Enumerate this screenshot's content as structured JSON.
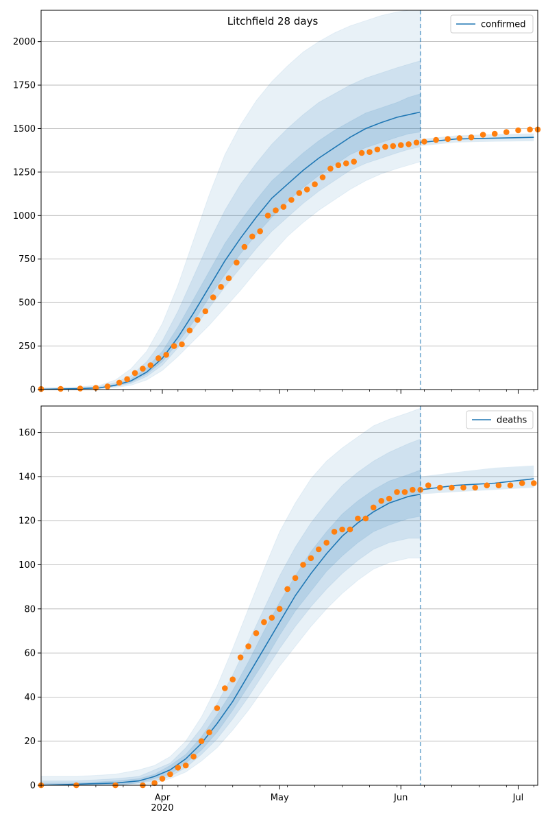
{
  "figure": {
    "title": "Litchfield 28 days"
  },
  "chart_data": [
    {
      "type": "line",
      "name": "confirmed",
      "ylim": [
        0,
        2180
      ],
      "y_ticks": [
        0,
        250,
        500,
        750,
        1000,
        1250,
        1500,
        1750,
        2000
      ],
      "y_tick_labels": [
        "0",
        "250",
        "500",
        "750",
        "1000",
        "1250",
        "1500",
        "1750",
        "2000"
      ],
      "legend": {
        "label": "confirmed",
        "placement": "top-right"
      },
      "grid_y": true,
      "fit_line": {
        "x": [
          "2020-03-01",
          "2020-03-10",
          "2020-03-16",
          "2020-03-20",
          "2020-03-24",
          "2020-03-28",
          "2020-04-01",
          "2020-04-05",
          "2020-04-09",
          "2020-04-13",
          "2020-04-17",
          "2020-04-21",
          "2020-04-25",
          "2020-04-29",
          "2020-05-03",
          "2020-05-07",
          "2020-05-11",
          "2020-05-15",
          "2020-05-19",
          "2020-05-23",
          "2020-05-27",
          "2020-05-31",
          "2020-06-03",
          "2020-06-06"
        ],
        "y": [
          2,
          5,
          10,
          25,
          50,
          100,
          180,
          300,
          440,
          590,
          740,
          870,
          990,
          1100,
          1180,
          1260,
          1330,
          1390,
          1450,
          1500,
          1535,
          1565,
          1580,
          1595
        ]
      },
      "forecast_line": {
        "x": [
          "2020-06-06",
          "2020-06-15",
          "2020-06-25",
          "2020-07-05"
        ],
        "y": [
          1420,
          1440,
          1445,
          1450
        ]
      },
      "bands": [
        {
          "level": "outer",
          "x": [
            "2020-03-01",
            "2020-03-10",
            "2020-03-16",
            "2020-03-20",
            "2020-03-24",
            "2020-03-28",
            "2020-04-01",
            "2020-04-05",
            "2020-04-09",
            "2020-04-13",
            "2020-04-17",
            "2020-04-21",
            "2020-04-25",
            "2020-04-29",
            "2020-05-03",
            "2020-05-07",
            "2020-05-11",
            "2020-05-15",
            "2020-05-19",
            "2020-05-23",
            "2020-05-27",
            "2020-05-31",
            "2020-06-03",
            "2020-06-06"
          ],
          "lower": [
            0,
            2,
            5,
            12,
            25,
            55,
            110,
            190,
            280,
            370,
            470,
            570,
            680,
            780,
            880,
            960,
            1030,
            1090,
            1150,
            1200,
            1240,
            1270,
            1290,
            1310
          ],
          "upper": [
            10,
            15,
            25,
            55,
            120,
            220,
            380,
            600,
            860,
            1120,
            1350,
            1520,
            1660,
            1770,
            1860,
            1940,
            2000,
            2050,
            2090,
            2120,
            2150,
            2170,
            2180,
            2180
          ]
        },
        {
          "level": "middle",
          "x": [
            "2020-03-01",
            "2020-03-10",
            "2020-03-16",
            "2020-03-20",
            "2020-03-24",
            "2020-03-28",
            "2020-04-01",
            "2020-04-05",
            "2020-04-09",
            "2020-04-13",
            "2020-04-17",
            "2020-04-21",
            "2020-04-25",
            "2020-04-29",
            "2020-05-03",
            "2020-05-07",
            "2020-05-11",
            "2020-05-15",
            "2020-05-19",
            "2020-05-23",
            "2020-05-27",
            "2020-05-31",
            "2020-06-03",
            "2020-06-06"
          ],
          "lower": [
            1,
            3,
            7,
            18,
            35,
            75,
            140,
            240,
            350,
            470,
            590,
            700,
            810,
            910,
            990,
            1070,
            1140,
            1200,
            1260,
            1300,
            1330,
            1360,
            1380,
            1395
          ],
          "upper": [
            5,
            9,
            18,
            40,
            80,
            160,
            280,
            450,
            650,
            850,
            1030,
            1180,
            1300,
            1410,
            1500,
            1580,
            1650,
            1700,
            1750,
            1790,
            1820,
            1850,
            1870,
            1890
          ]
        },
        {
          "level": "inner",
          "x": [
            "2020-03-01",
            "2020-03-10",
            "2020-03-16",
            "2020-03-20",
            "2020-03-24",
            "2020-03-28",
            "2020-04-01",
            "2020-04-05",
            "2020-04-09",
            "2020-04-13",
            "2020-04-17",
            "2020-04-21",
            "2020-04-25",
            "2020-04-29",
            "2020-05-03",
            "2020-05-07",
            "2020-05-11",
            "2020-05-15",
            "2020-05-19",
            "2020-05-23",
            "2020-05-27",
            "2020-05-31",
            "2020-06-03",
            "2020-06-06"
          ],
          "lower": [
            1,
            4,
            8,
            20,
            42,
            88,
            160,
            270,
            390,
            530,
            660,
            780,
            890,
            990,
            1080,
            1160,
            1230,
            1290,
            1350,
            1390,
            1420,
            1450,
            1470,
            1480
          ],
          "upper": [
            3,
            7,
            13,
            30,
            62,
            125,
            220,
            360,
            520,
            680,
            840,
            970,
            1090,
            1200,
            1280,
            1360,
            1430,
            1490,
            1540,
            1590,
            1620,
            1650,
            1680,
            1700
          ]
        }
      ],
      "forecast_band": {
        "x": [
          "2020-06-06",
          "2020-06-15",
          "2020-06-25",
          "2020-07-05"
        ],
        "lower": [
          1400,
          1420,
          1425,
          1428
        ],
        "upper": [
          1440,
          1460,
          1468,
          1472
        ]
      },
      "observed": {
        "x": [
          "2020-03-01",
          "2020-03-06",
          "2020-03-11",
          "2020-03-15",
          "2020-03-18",
          "2020-03-21",
          "2020-03-23",
          "2020-03-25",
          "2020-03-27",
          "2020-03-29",
          "2020-03-31",
          "2020-04-02",
          "2020-04-04",
          "2020-04-06",
          "2020-04-08",
          "2020-04-10",
          "2020-04-12",
          "2020-04-14",
          "2020-04-16",
          "2020-04-18",
          "2020-04-20",
          "2020-04-22",
          "2020-04-24",
          "2020-04-26",
          "2020-04-28",
          "2020-04-30",
          "2020-05-02",
          "2020-05-04",
          "2020-05-06",
          "2020-05-08",
          "2020-05-10",
          "2020-05-12",
          "2020-05-14",
          "2020-05-16",
          "2020-05-18",
          "2020-05-20",
          "2020-05-22",
          "2020-05-24",
          "2020-05-26",
          "2020-05-28",
          "2020-05-30",
          "2020-06-01",
          "2020-06-03",
          "2020-06-05",
          "2020-06-07",
          "2020-06-10",
          "2020-06-13",
          "2020-06-16",
          "2020-06-19",
          "2020-06-22",
          "2020-06-25",
          "2020-06-28",
          "2020-07-01",
          "2020-07-04",
          "2020-07-06"
        ],
        "y": [
          3,
          4,
          6,
          10,
          18,
          40,
          60,
          95,
          120,
          140,
          180,
          200,
          250,
          260,
          340,
          400,
          450,
          530,
          590,
          640,
          730,
          820,
          880,
          910,
          1000,
          1030,
          1050,
          1090,
          1130,
          1150,
          1180,
          1220,
          1270,
          1290,
          1300,
          1310,
          1360,
          1365,
          1380,
          1395,
          1400,
          1405,
          1410,
          1420,
          1425,
          1435,
          1440,
          1445,
          1450,
          1465,
          1470,
          1480,
          1490,
          1495,
          1495
        ]
      }
    },
    {
      "type": "line",
      "name": "deaths",
      "ylim": [
        0,
        172
      ],
      "y_ticks": [
        0,
        20,
        40,
        60,
        80,
        100,
        120,
        140,
        160
      ],
      "y_tick_labels": [
        "0",
        "20",
        "40",
        "60",
        "80",
        "100",
        "120",
        "140",
        "160"
      ],
      "legend": {
        "label": "deaths",
        "placement": "top-right"
      },
      "grid_y": true,
      "fit_line": {
        "x": [
          "2020-03-01",
          "2020-03-10",
          "2020-03-20",
          "2020-03-26",
          "2020-03-30",
          "2020-04-03",
          "2020-04-07",
          "2020-04-11",
          "2020-04-15",
          "2020-04-19",
          "2020-04-23",
          "2020-04-27",
          "2020-05-01",
          "2020-05-05",
          "2020-05-09",
          "2020-05-13",
          "2020-05-17",
          "2020-05-21",
          "2020-05-25",
          "2020-05-29",
          "2020-06-03",
          "2020-06-06"
        ],
        "y": [
          0,
          0.5,
          1,
          2,
          4,
          7,
          12,
          19,
          28,
          38,
          50,
          62,
          74,
          86,
          96,
          105,
          113,
          119,
          124,
          128,
          131,
          132
        ]
      },
      "forecast_line": {
        "x": [
          "2020-06-06",
          "2020-06-15",
          "2020-06-25",
          "2020-07-05"
        ],
        "y": [
          134,
          136,
          137,
          139
        ]
      },
      "bands": [
        {
          "level": "outer",
          "x": [
            "2020-03-01",
            "2020-03-10",
            "2020-03-20",
            "2020-03-26",
            "2020-03-30",
            "2020-04-03",
            "2020-04-07",
            "2020-04-11",
            "2020-04-15",
            "2020-04-19",
            "2020-04-23",
            "2020-04-27",
            "2020-05-01",
            "2020-05-05",
            "2020-05-09",
            "2020-05-13",
            "2020-05-17",
            "2020-05-21",
            "2020-05-25",
            "2020-05-29",
            "2020-06-03",
            "2020-06-06"
          ],
          "lower": [
            0,
            0,
            0,
            0,
            1,
            3,
            6,
            11,
            17,
            25,
            34,
            44,
            54,
            63,
            72,
            80,
            87,
            93,
            98,
            101,
            103,
            103
          ],
          "upper": [
            4,
            4,
            5,
            7,
            9,
            13,
            20,
            31,
            45,
            62,
            80,
            98,
            115,
            128,
            139,
            147,
            153,
            158,
            163,
            166,
            169,
            171
          ]
        },
        {
          "level": "middle",
          "x": [
            "2020-03-01",
            "2020-03-10",
            "2020-03-20",
            "2020-03-26",
            "2020-03-30",
            "2020-04-03",
            "2020-04-07",
            "2020-04-11",
            "2020-04-15",
            "2020-04-19",
            "2020-04-23",
            "2020-04-27",
            "2020-05-01",
            "2020-05-05",
            "2020-05-09",
            "2020-05-13",
            "2020-05-17",
            "2020-05-21",
            "2020-05-25",
            "2020-05-29",
            "2020-06-03",
            "2020-06-06"
          ],
          "lower": [
            0,
            0,
            0,
            1,
            2,
            4,
            8,
            14,
            21,
            30,
            40,
            51,
            62,
            72,
            81,
            89,
            96,
            102,
            107,
            110,
            112,
            112
          ],
          "upper": [
            2,
            2,
            3,
            4,
            7,
            10,
            17,
            26,
            37,
            50,
            65,
            80,
            95,
            108,
            119,
            128,
            136,
            142,
            147,
            151,
            155,
            157
          ]
        },
        {
          "level": "inner",
          "x": [
            "2020-03-01",
            "2020-03-10",
            "2020-03-20",
            "2020-03-26",
            "2020-03-30",
            "2020-04-03",
            "2020-04-07",
            "2020-04-11",
            "2020-04-15",
            "2020-04-19",
            "2020-04-23",
            "2020-04-27",
            "2020-05-01",
            "2020-05-05",
            "2020-05-09",
            "2020-05-13",
            "2020-05-17",
            "2020-05-21",
            "2020-05-25",
            "2020-05-29",
            "2020-06-03",
            "2020-06-06"
          ],
          "lower": [
            0,
            0,
            0,
            1,
            3,
            5,
            10,
            16,
            24,
            34,
            45,
            56,
            68,
            79,
            88,
            97,
            104,
            110,
            115,
            118,
            121,
            122
          ],
          "upper": [
            1,
            1,
            2,
            3,
            5,
            9,
            14,
            22,
            32,
            43,
            56,
            70,
            83,
            95,
            106,
            115,
            123,
            129,
            134,
            138,
            141,
            143
          ]
        }
      ],
      "forecast_band": {
        "x": [
          "2020-06-06",
          "2020-06-15",
          "2020-06-25",
          "2020-07-05"
        ],
        "lower": [
          132,
          133,
          134,
          135
        ],
        "upper": [
          140,
          142,
          144,
          145
        ]
      },
      "observed": {
        "x": [
          "2020-03-01",
          "2020-03-10",
          "2020-03-20",
          "2020-03-27",
          "2020-03-30",
          "2020-04-01",
          "2020-04-03",
          "2020-04-05",
          "2020-04-07",
          "2020-04-09",
          "2020-04-11",
          "2020-04-13",
          "2020-04-15",
          "2020-04-17",
          "2020-04-19",
          "2020-04-21",
          "2020-04-23",
          "2020-04-25",
          "2020-04-27",
          "2020-04-29",
          "2020-05-01",
          "2020-05-03",
          "2020-05-05",
          "2020-05-07",
          "2020-05-09",
          "2020-05-11",
          "2020-05-13",
          "2020-05-15",
          "2020-05-17",
          "2020-05-19",
          "2020-05-21",
          "2020-05-23",
          "2020-05-25",
          "2020-05-27",
          "2020-05-29",
          "2020-05-31",
          "2020-06-02",
          "2020-06-04",
          "2020-06-06",
          "2020-06-08",
          "2020-06-11",
          "2020-06-14",
          "2020-06-17",
          "2020-06-20",
          "2020-06-23",
          "2020-06-26",
          "2020-06-29",
          "2020-07-02",
          "2020-07-05"
        ],
        "y": [
          0,
          0,
          0,
          0,
          1,
          3,
          5,
          8,
          9,
          13,
          20,
          24,
          35,
          44,
          48,
          58,
          63,
          69,
          74,
          76,
          80,
          89,
          94,
          100,
          103,
          107,
          110,
          115,
          116,
          116,
          121,
          121,
          126,
          129,
          130,
          133,
          133,
          134,
          134,
          136,
          135,
          135,
          135,
          135,
          136,
          136,
          136,
          137,
          137
        ]
      }
    }
  ],
  "x_axis": {
    "domain": [
      "2020-03-01",
      "2020-07-06"
    ],
    "major_ticks": [
      "2020-04-01",
      "2020-05-01",
      "2020-06-01",
      "2020-07-01"
    ],
    "major_labels": [
      "Apr",
      "May",
      "Jun",
      "Jul"
    ],
    "year_label": "2020",
    "forecast_split": "2020-06-06"
  },
  "colors": {
    "fit_line": "#1f77b4",
    "observed": "#ff7f0e",
    "band": "#1f77b4",
    "grid": "#b0b0b0",
    "split_line": "#1f77b4"
  }
}
